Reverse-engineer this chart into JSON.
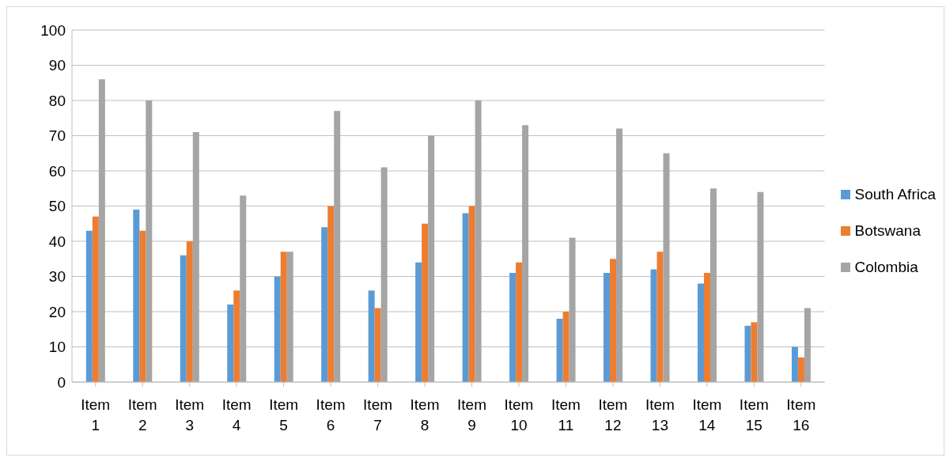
{
  "chart_data": {
    "type": "bar",
    "categories": [
      "Item 1",
      "Item 2",
      "Item 3",
      "Item 4",
      "Item 5",
      "Item 6",
      "Item 7",
      "Item 8",
      "Item 9",
      "Item 10",
      "Item 11",
      "Item 12",
      "Item 13",
      "Item 14",
      "Item 15",
      "Item 16"
    ],
    "series": [
      {
        "name": "South Africa",
        "color": "#5b9bd5",
        "values": [
          43,
          49,
          36,
          22,
          30,
          44,
          26,
          34,
          48,
          31,
          18,
          31,
          32,
          28,
          16,
          10
        ]
      },
      {
        "name": "Botswana",
        "color": "#ed7d31",
        "values": [
          47,
          43,
          40,
          26,
          37,
          50,
          21,
          45,
          50,
          34,
          20,
          35,
          37,
          31,
          17,
          7
        ]
      },
      {
        "name": "Colombia",
        "color": "#a5a5a5",
        "values": [
          86,
          80,
          71,
          53,
          37,
          77,
          61,
          70,
          80,
          73,
          41,
          72,
          65,
          55,
          54,
          21
        ]
      }
    ],
    "ylim": [
      0,
      100
    ],
    "yticks": [
      0,
      10,
      20,
      30,
      40,
      50,
      60,
      70,
      80,
      90,
      100
    ],
    "grid": "y",
    "legend": "right"
  }
}
